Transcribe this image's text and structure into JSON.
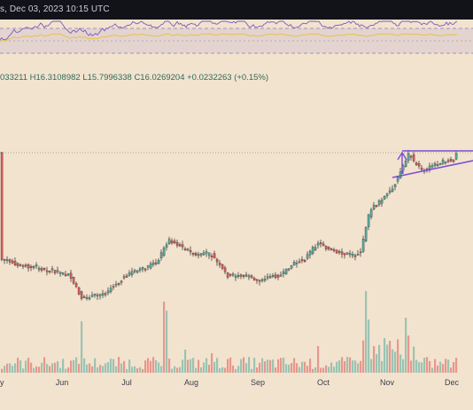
{
  "header": {
    "title_fragment": "s, Dec 03, 2023 10:15 UTC"
  },
  "ohlc_fragment": "033211  H16.3108982  L15.7996338  C16.0269204  +0.0232263 (+0.15%)",
  "colors": {
    "background": "#f2e3cf",
    "bull": "#56a99b",
    "bear": "#e05a55",
    "trendline": "#7b4fd4",
    "rsi_line": "#7e57c2",
    "rsi_ma": "#e6c24e"
  },
  "chart_data": [
    {
      "type": "candlestick",
      "subtype": "price",
      "x_ticks": [
        "y",
        "Jun",
        "Jul",
        "Aug",
        "Sep",
        "Oct",
        "Nov",
        "Dec"
      ],
      "last_close": 16.0269204,
      "annotations": [
        "ascending triangle trendlines",
        "dotted resistance level"
      ]
    },
    {
      "type": "bar",
      "subtype": "volume",
      "series": [
        {
          "name": "",
          "color": "bull"
        },
        {
          "name": "",
          "color": "bear"
        }
      ]
    },
    {
      "type": "line",
      "subtype": "rsi",
      "bands": [
        30,
        70
      ],
      "series": [
        {
          "name": "",
          "color": "rsi_line"
        },
        {
          "name": "",
          "color": "rsi_ma"
        }
      ]
    }
  ]
}
